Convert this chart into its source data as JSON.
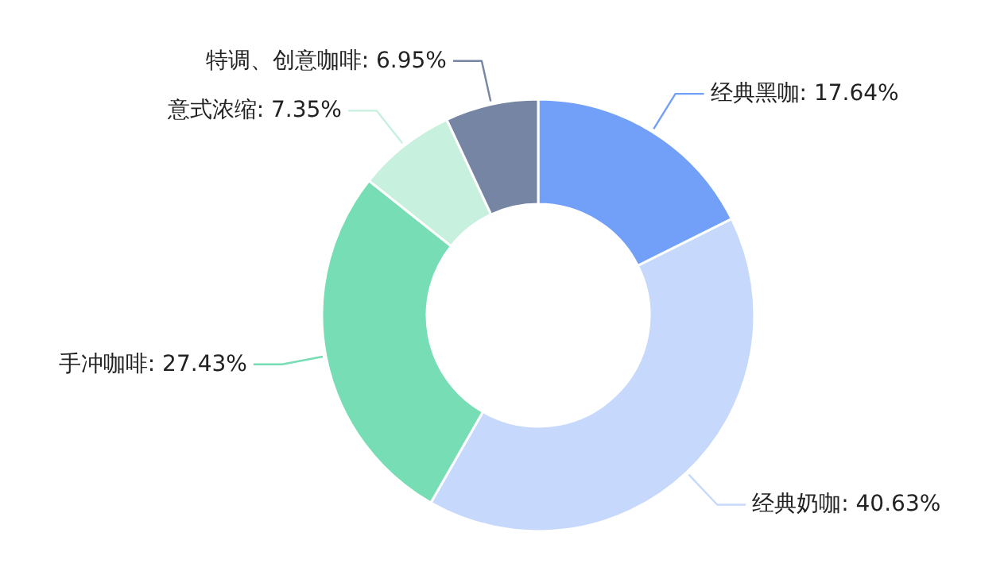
{
  "chart_data": {
    "type": "donut",
    "categories": [
      "经典黑咖",
      "经典奶咖",
      "手冲咖啡",
      "意式浓缩",
      "特调、创意咖啡"
    ],
    "values": [
      17.64,
      40.63,
      27.43,
      7.35,
      6.95
    ],
    "colors": [
      "#72a0f8",
      "#c6d8fb",
      "#77ddb5",
      "#c8f0de",
      "#7585a3"
    ],
    "value_labels": [
      ": 17.64%",
      ": 40.63%",
      ": 27.43%",
      ": 7.35%",
      ": 6.95%"
    ]
  }
}
